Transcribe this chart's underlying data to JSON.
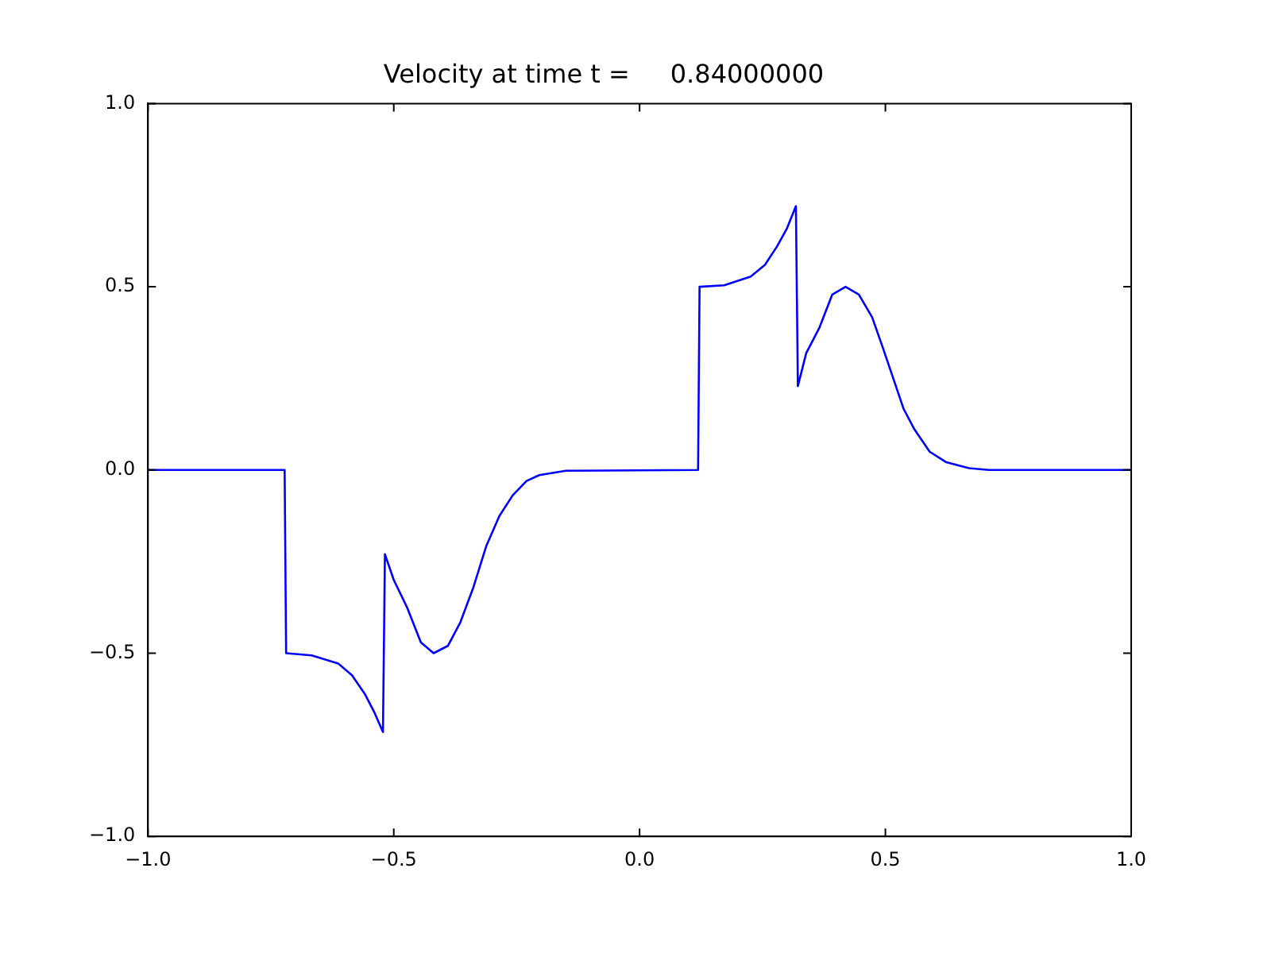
{
  "chart_data": {
    "type": "line",
    "title": "Velocity at time t =     0.84000000",
    "xlim": [
      -1,
      1
    ],
    "ylim": [
      -1,
      1
    ],
    "xticks": [
      {
        "value": -1,
        "label": "−1.0"
      },
      {
        "value": -0.5,
        "label": "−0.5"
      },
      {
        "value": 0,
        "label": "0.0"
      },
      {
        "value": 0.5,
        "label": "0.5"
      },
      {
        "value": 1,
        "label": "1.0"
      }
    ],
    "yticks": [
      {
        "value": -1,
        "label": "−1.0"
      },
      {
        "value": -0.5,
        "label": "−0.5"
      },
      {
        "value": 0,
        "label": "0.0"
      },
      {
        "value": 0.5,
        "label": "0.5"
      },
      {
        "value": 1,
        "label": "1.0"
      }
    ],
    "grid": false,
    "legend": false,
    "series": [
      {
        "color": "#0000ff",
        "x": [
          -1,
          -0.722,
          -0.719,
          -0.667,
          -0.613,
          -0.585,
          -0.559,
          -0.54,
          -0.522,
          -0.518,
          -0.5,
          -0.473,
          -0.445,
          -0.419,
          -0.39,
          -0.365,
          -0.338,
          -0.312,
          -0.285,
          -0.258,
          -0.23,
          -0.204,
          -0.15,
          0.119,
          0.122,
          0.172,
          0.226,
          0.255,
          0.28,
          0.3,
          0.318,
          0.322,
          0.339,
          0.366,
          0.392,
          0.419,
          0.446,
          0.473,
          0.495,
          0.516,
          0.537,
          0.559,
          0.59,
          0.624,
          0.67,
          0.71,
          1
        ],
        "values": [
          0,
          0,
          -0.5,
          -0.506,
          -0.528,
          -0.56,
          -0.611,
          -0.66,
          -0.715,
          -0.23,
          -0.3,
          -0.375,
          -0.47,
          -0.5,
          -0.48,
          -0.417,
          -0.32,
          -0.208,
          -0.125,
          -0.069,
          -0.03,
          -0.014,
          -0.002,
          0,
          0.5,
          0.504,
          0.528,
          0.56,
          0.611,
          0.66,
          0.72,
          0.229,
          0.319,
          0.389,
          0.479,
          0.5,
          0.479,
          0.417,
          0.333,
          0.25,
          0.167,
          0.111,
          0.05,
          0.021,
          0.005,
          0,
          0
        ]
      }
    ]
  }
}
